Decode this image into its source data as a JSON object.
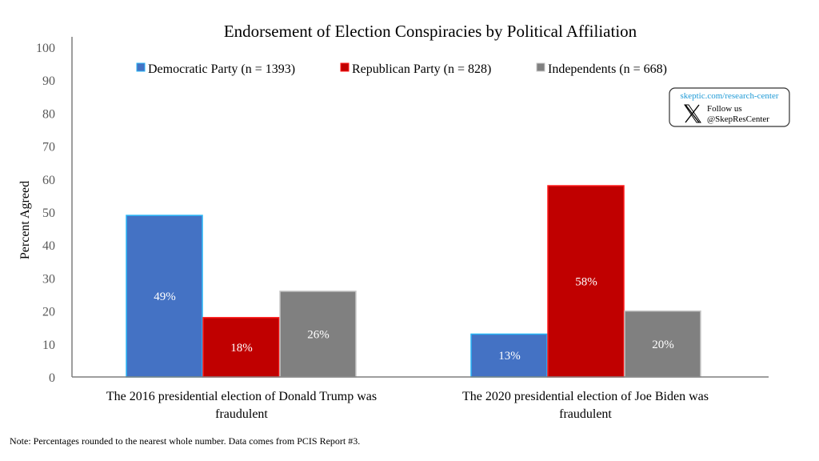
{
  "chart_data": {
    "type": "bar",
    "title": "Endorsement of Election Conspiracies by Political Affiliation",
    "xlabel": "",
    "ylabel": "Percent Agreed",
    "ylim": [
      0,
      100
    ],
    "yticks": [
      0,
      10,
      20,
      30,
      40,
      50,
      60,
      70,
      80,
      90,
      100
    ],
    "grid": false,
    "legend_position": "top",
    "categories": [
      [
        "The 2016 presidential election of Donald Trump was",
        "fraudulent"
      ],
      [
        "The 2020 presidential election of Joe Biden was",
        "fraudulent"
      ]
    ],
    "series": [
      {
        "name": "Democratic Party (n = 1393)",
        "color": "#4472C4",
        "border": "#29B6F6",
        "values": [
          49,
          13
        ],
        "labels": [
          "49%",
          "13%"
        ]
      },
      {
        "name": "Republican Party (n = 828)",
        "color": "#C00000",
        "border": "#FF1A1A",
        "values": [
          18,
          58
        ],
        "labels": [
          "18%",
          "58%"
        ]
      },
      {
        "name": "Independents (n = 668)",
        "color": "#808080",
        "border": "#C8C8C8",
        "values": [
          26,
          20
        ],
        "labels": [
          "26%",
          "20%"
        ]
      }
    ],
    "note": "Note: Percentages rounded to the nearest whole number. Data comes from PCIS Report #3."
  },
  "badge": {
    "url": "skeptic.com/research-center",
    "follow": "Follow us",
    "handle": "@SkepResCenter",
    "icon": "x-logo-icon"
  }
}
